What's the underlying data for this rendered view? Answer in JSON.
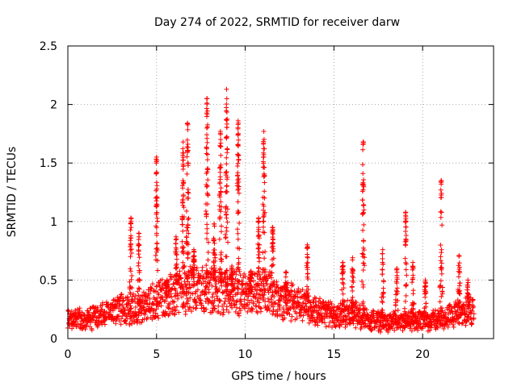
{
  "chart_data": {
    "type": "scatter",
    "title": "Day 274 of 2022, SRMTID for receiver darw",
    "xlabel": "GPS time / hours",
    "ylabel": "SRMTID / TECUs",
    "xlim": [
      0,
      24
    ],
    "ylim": [
      0,
      2.5
    ],
    "xticks": [
      0,
      5,
      10,
      15,
      20
    ],
    "yticks": [
      0,
      0.5,
      1,
      1.5,
      2,
      2.5
    ],
    "xtick_labels": [
      "0",
      "5",
      "10",
      "15",
      "20"
    ],
    "ytick_labels": [
      "0",
      "0.5",
      "1",
      "1.5",
      "2",
      "2.5"
    ],
    "grid": true,
    "marker": "plus",
    "series_color": "#ff0000",
    "baseline": [
      [
        0,
        0.18
      ],
      [
        1,
        0.16
      ],
      [
        2,
        0.2
      ],
      [
        3,
        0.26
      ],
      [
        4,
        0.24
      ],
      [
        5,
        0.33
      ],
      [
        6,
        0.38
      ],
      [
        7,
        0.42
      ],
      [
        8,
        0.42
      ],
      [
        9,
        0.38
      ],
      [
        10,
        0.4
      ],
      [
        11,
        0.4
      ],
      [
        12,
        0.34
      ],
      [
        13,
        0.3
      ],
      [
        14,
        0.24
      ],
      [
        15,
        0.2
      ],
      [
        16,
        0.22
      ],
      [
        17,
        0.16
      ],
      [
        18,
        0.14
      ],
      [
        19,
        0.14
      ],
      [
        20,
        0.15
      ],
      [
        21,
        0.17
      ],
      [
        22,
        0.22
      ],
      [
        23,
        0.25
      ]
    ],
    "spikes": [
      {
        "t": 3.55,
        "peak": 1.03
      },
      {
        "t": 4.0,
        "peak": 0.9
      },
      {
        "t": 5.0,
        "peak": 1.55
      },
      {
        "t": 5.6,
        "peak": 0.5
      },
      {
        "t": 6.1,
        "peak": 0.87
      },
      {
        "t": 6.5,
        "peak": 1.68
      },
      {
        "t": 6.75,
        "peak": 1.84
      },
      {
        "t": 7.1,
        "peak": 0.76
      },
      {
        "t": 7.85,
        "peak": 2.05
      },
      {
        "t": 8.25,
        "peak": 0.98
      },
      {
        "t": 8.6,
        "peak": 1.77
      },
      {
        "t": 8.95,
        "peak": 2.13
      },
      {
        "t": 9.25,
        "peak": 0.62
      },
      {
        "t": 9.6,
        "peak": 1.86
      },
      {
        "t": 10.3,
        "peak": 0.57
      },
      {
        "t": 10.75,
        "peak": 1.03
      },
      {
        "t": 11.05,
        "peak": 1.77
      },
      {
        "t": 11.55,
        "peak": 0.95
      },
      {
        "t": 12.3,
        "peak": 0.57
      },
      {
        "t": 13.5,
        "peak": 0.8
      },
      {
        "t": 15.5,
        "peak": 0.65
      },
      {
        "t": 16.05,
        "peak": 0.69
      },
      {
        "t": 16.65,
        "peak": 1.68
      },
      {
        "t": 17.75,
        "peak": 0.76
      },
      {
        "t": 18.55,
        "peak": 0.6
      },
      {
        "t": 19.05,
        "peak": 1.08
      },
      {
        "t": 19.45,
        "peak": 0.65
      },
      {
        "t": 20.15,
        "peak": 0.5
      },
      {
        "t": 21.05,
        "peak": 1.35
      },
      {
        "t": 22.05,
        "peak": 0.71
      },
      {
        "t": 22.55,
        "peak": 0.5
      }
    ]
  }
}
